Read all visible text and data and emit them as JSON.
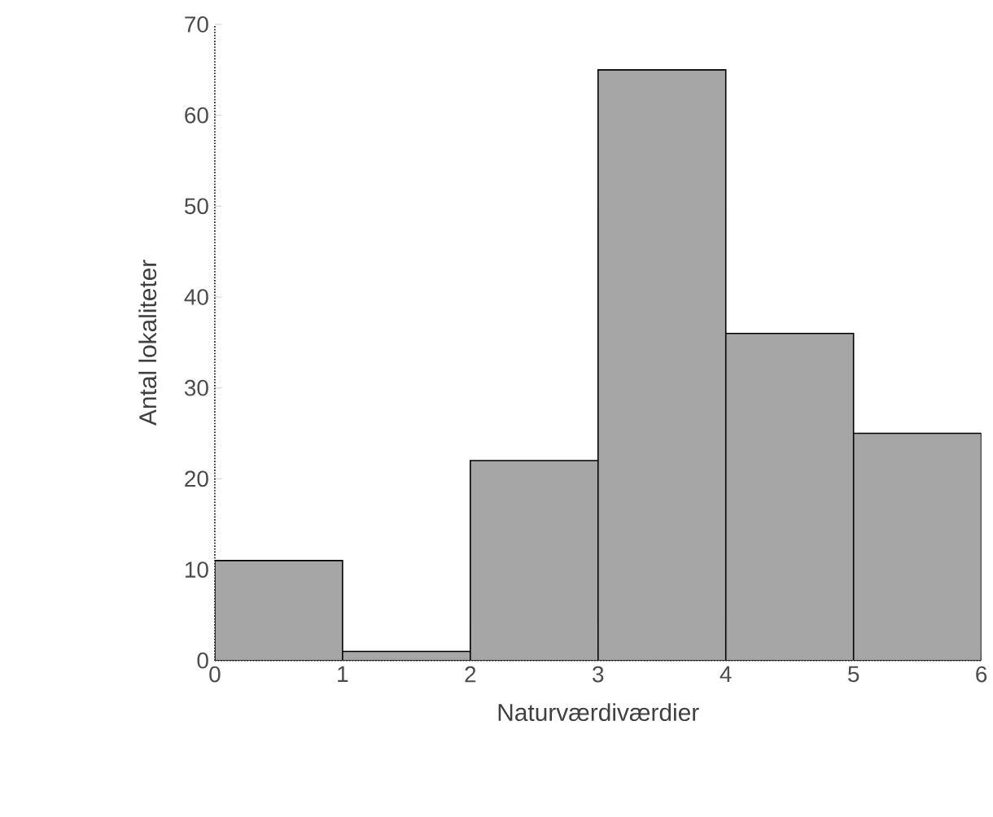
{
  "chart_data": {
    "type": "histogram",
    "xlabel": "Naturværdiværdier",
    "ylabel": "Antal lokaliteter",
    "bins": [
      0,
      1,
      2,
      3,
      4,
      5,
      6
    ],
    "values": [
      11,
      1,
      22,
      65,
      36,
      25
    ],
    "color": "#a6a6a6",
    "xlim": [
      0,
      6
    ],
    "xticks": [
      0,
      1,
      2,
      3,
      4,
      5,
      6
    ],
    "ylim": [
      0,
      70
    ],
    "yticks": [
      0,
      10,
      20,
      30,
      40,
      50,
      60,
      70
    ],
    "grid": false
  }
}
